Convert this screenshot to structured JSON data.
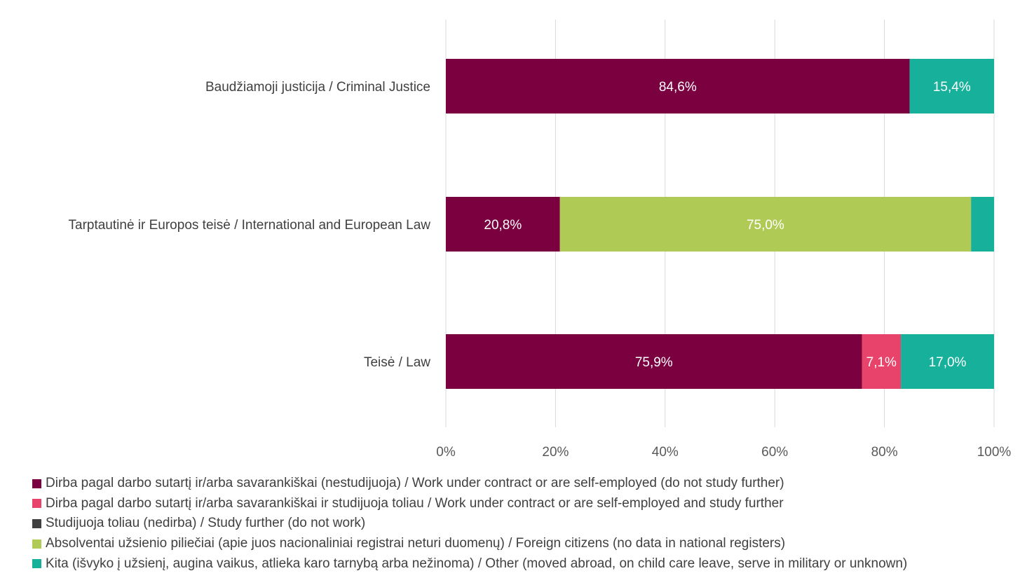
{
  "chart_data": {
    "type": "bar",
    "orientation": "horizontal",
    "stacked": true,
    "percent_stacked": true,
    "categories": [
      "Baudžiamoji justicija / Criminal Justice",
      "Tarptautinė ir Europos teisė / International and European Law",
      "Teisė / Law"
    ],
    "series": [
      {
        "name": "Dirba pagal darbo sutartį ir/arba savarankiškai (nestudijuoja) / Work under contract or are self-employed (do not study further)",
        "color": "#7a0040",
        "values": [
          84.6,
          20.8,
          75.9
        ],
        "labels": [
          "84,6%",
          "20,8%",
          "75,9%"
        ]
      },
      {
        "name": "Dirba pagal darbo sutartį ir/arba savarankiškai  ir studijuoja toliau / Work under contract or are self-employed and study further",
        "color": "#e8436a",
        "values": [
          0,
          0,
          7.1
        ],
        "labels": [
          "",
          "",
          "7,1%"
        ]
      },
      {
        "name": "Studijuoja toliau (nedirba) / Study further (do not work)",
        "color": "#404040",
        "values": [
          0,
          0,
          0
        ],
        "labels": [
          "",
          "",
          ""
        ]
      },
      {
        "name": "Absolventai užsienio piliečiai (apie juos nacionaliniai registrai neturi duomenų) / Foreign citizens (no data in national registers)",
        "color": "#afcb55",
        "values": [
          0,
          75.0,
          0
        ],
        "labels": [
          "",
          "75,0%",
          ""
        ]
      },
      {
        "name": "Kita (išvyko į užsienį, augina vaikus, atlieka karo tarnybą arba nežinoma) / Other (moved abroad, on child care leave, serve in military or unknown)",
        "color": "#17b09b",
        "values": [
          15.4,
          4.2,
          17.0
        ],
        "labels": [
          "15,4%",
          "",
          "17,0%"
        ]
      }
    ],
    "xlim": [
      0,
      100
    ],
    "x_ticks": [
      "0%",
      "20%",
      "40%",
      "60%",
      "80%",
      "100%"
    ],
    "title": "",
    "xlabel": "",
    "ylabel": "",
    "grid": true,
    "gridline_color": "#d9d9d9",
    "legend_position": "bottom"
  }
}
